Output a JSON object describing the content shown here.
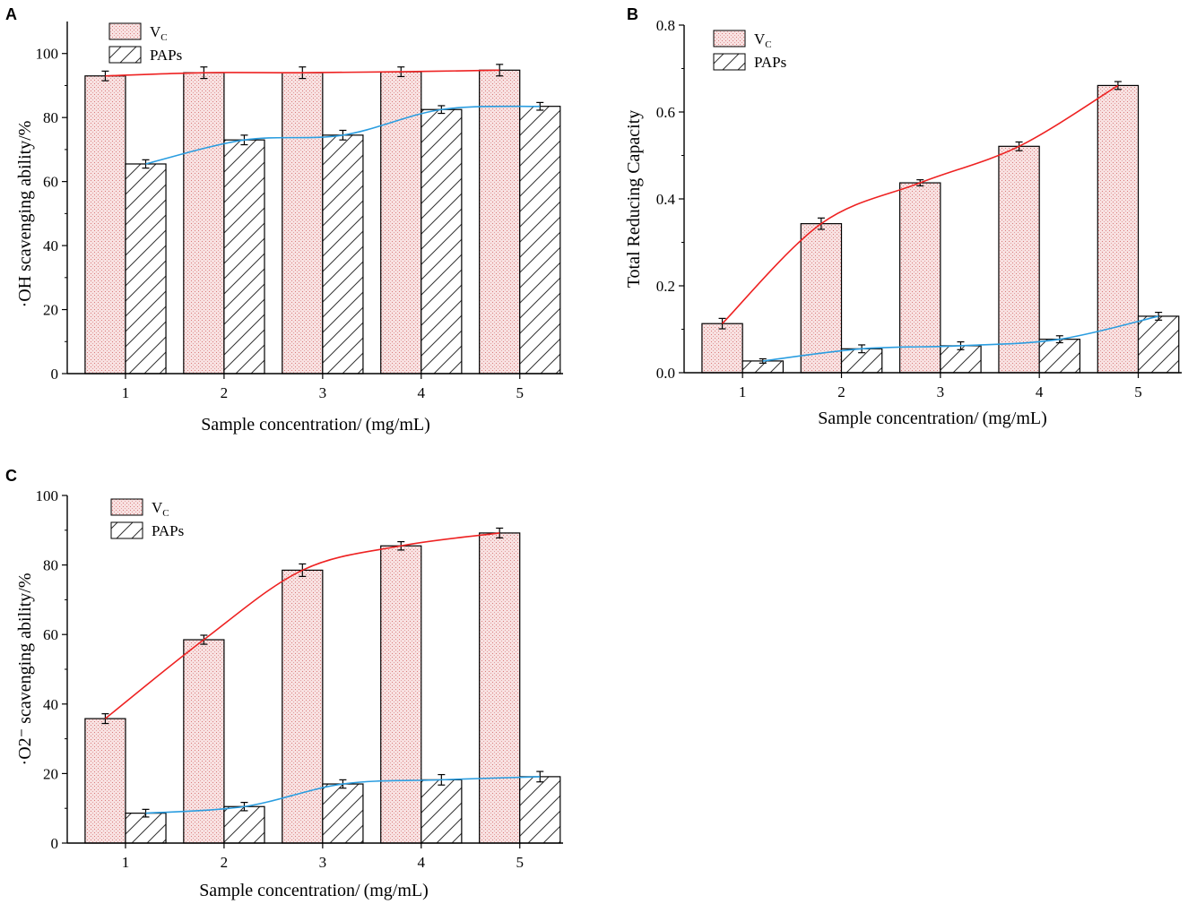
{
  "colors": {
    "vc_fill": "#f8e1e1",
    "vc_dots": "#d97a7a",
    "vc_line": "#ee2222",
    "paps_line": "#2a9de0",
    "axis": "#000000"
  },
  "chart_data": [
    {
      "panel": "A",
      "type": "bar",
      "title": "",
      "xlabel": "Sample concentration/ (mg/mL)",
      "ylabel": "·OH scavenging ability/%",
      "categories": [
        "1",
        "2",
        "3",
        "4",
        "5"
      ],
      "ylim": [
        0,
        110
      ],
      "yticks": [
        "0",
        "20",
        "40",
        "60",
        "80",
        "100"
      ],
      "ytick_values": [
        0,
        20,
        40,
        60,
        80,
        100
      ],
      "legend_position": "top-left",
      "series": [
        {
          "name": "V",
          "name_sub": "C",
          "pattern": "dots",
          "values": [
            93.0,
            94.0,
            94.0,
            94.3,
            94.8
          ],
          "errors": [
            1.5,
            1.8,
            1.8,
            1.5,
            1.8
          ]
        },
        {
          "name": "PAPs",
          "name_sub": "",
          "pattern": "hatch",
          "values": [
            65.5,
            73.0,
            74.5,
            82.5,
            83.5
          ],
          "errors": [
            1.3,
            1.5,
            1.5,
            1.2,
            1.2
          ]
        }
      ]
    },
    {
      "panel": "B",
      "type": "bar",
      "title": "",
      "xlabel": "Sample concentration/ (mg/mL)",
      "ylabel": "Total Reducing Capacity",
      "categories": [
        "1",
        "2",
        "3",
        "4",
        "5"
      ],
      "ylim": [
        0,
        0.8
      ],
      "yticks": [
        "0.0",
        "0.2",
        "0.4",
        "0.6",
        "0.8"
      ],
      "ytick_values": [
        0,
        0.2,
        0.4,
        0.6,
        0.8
      ],
      "legend_position": "top-left",
      "series": [
        {
          "name": "V",
          "name_sub": "C",
          "pattern": "dots",
          "values": [
            0.113,
            0.343,
            0.437,
            0.521,
            0.661
          ],
          "errors": [
            0.012,
            0.013,
            0.007,
            0.01,
            0.009
          ]
        },
        {
          "name": "PAPs",
          "name_sub": "",
          "pattern": "hatch",
          "values": [
            0.027,
            0.055,
            0.062,
            0.077,
            0.13
          ],
          "errors": [
            0.005,
            0.009,
            0.009,
            0.008,
            0.009
          ]
        }
      ]
    },
    {
      "panel": "C",
      "type": "bar",
      "title": "",
      "xlabel": "Sample concentration/ (mg/mL)",
      "ylabel": "·O2⁻ scavenging ability/%",
      "categories": [
        "1",
        "2",
        "3",
        "4",
        "5"
      ],
      "ylim": [
        0,
        100
      ],
      "yticks": [
        "0",
        "20",
        "40",
        "60",
        "80",
        "100"
      ],
      "ytick_values": [
        0,
        20,
        40,
        60,
        80,
        100
      ],
      "legend_position": "top-left",
      "series": [
        {
          "name": "V",
          "name_sub": "C",
          "pattern": "dots",
          "values": [
            35.8,
            58.5,
            78.5,
            85.5,
            89.2
          ],
          "errors": [
            1.4,
            1.3,
            1.8,
            1.2,
            1.4
          ]
        },
        {
          "name": "PAPs",
          "name_sub": "",
          "pattern": "hatch",
          "values": [
            8.6,
            10.5,
            17.0,
            18.2,
            19.1
          ],
          "errors": [
            1.1,
            1.2,
            1.2,
            1.5,
            1.5
          ]
        }
      ]
    }
  ]
}
